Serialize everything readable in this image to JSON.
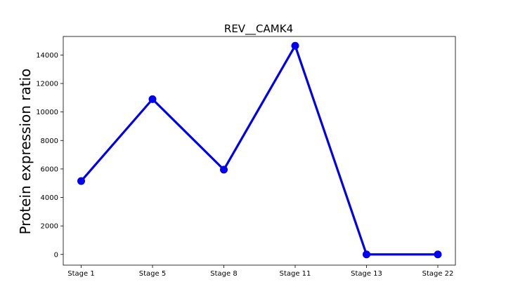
{
  "chart_data": {
    "type": "line",
    "title": "REV__CAMK4",
    "xlabel": "",
    "ylabel": "Protein expression ratio",
    "categories": [
      "Stage 1",
      "Stage 5",
      "Stage 8",
      "Stage 11",
      "Stage 13",
      "Stage 22"
    ],
    "yticks": [
      0,
      2000,
      4000,
      6000,
      8000,
      10000,
      12000,
      14000
    ],
    "ylim": [
      -750,
      15300
    ],
    "grid": false,
    "series": [
      {
        "values": [
          5150,
          10900,
          5950,
          14650,
          0,
          0
        ],
        "color": "#0000ee"
      }
    ]
  }
}
